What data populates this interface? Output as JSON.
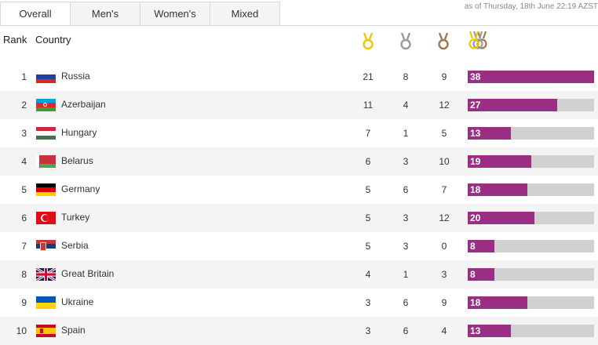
{
  "tabs": [
    {
      "label": "Overall",
      "active": true
    },
    {
      "label": "Men's",
      "active": false
    },
    {
      "label": "Women's",
      "active": false
    },
    {
      "label": "Mixed",
      "active": false
    }
  ],
  "as_of": "as of Thursday, 18th June 22:19 AZST",
  "headers": {
    "rank": "Rank",
    "country": "Country"
  },
  "icons": {
    "gold": "gold-medal-icon",
    "silver": "silver-medal-icon",
    "bronze": "bronze-medal-icon",
    "total": "total-medals-icon"
  },
  "colors": {
    "gold": "#f2c500",
    "silver": "#9a9a9a",
    "bronze": "#9b7a50",
    "bar": "#9a2d84",
    "bar_bg": "#d1d1d1"
  },
  "bar_max": 38,
  "rows": [
    {
      "rank": "1",
      "country": "Russia",
      "flag": "russia",
      "gold": "21",
      "silver": "8",
      "bronze": "9",
      "total": "38"
    },
    {
      "rank": "2",
      "country": "Azerbaijan",
      "flag": "azerbaijan",
      "gold": "11",
      "silver": "4",
      "bronze": "12",
      "total": "27"
    },
    {
      "rank": "3",
      "country": "Hungary",
      "flag": "hungary",
      "gold": "7",
      "silver": "1",
      "bronze": "5",
      "total": "13"
    },
    {
      "rank": "4",
      "country": "Belarus",
      "flag": "belarus",
      "gold": "6",
      "silver": "3",
      "bronze": "10",
      "total": "19"
    },
    {
      "rank": "5",
      "country": "Germany",
      "flag": "germany",
      "gold": "5",
      "silver": "6",
      "bronze": "7",
      "total": "18"
    },
    {
      "rank": "6",
      "country": "Turkey",
      "flag": "turkey",
      "gold": "5",
      "silver": "3",
      "bronze": "12",
      "total": "20"
    },
    {
      "rank": "7",
      "country": "Serbia",
      "flag": "serbia",
      "gold": "5",
      "silver": "3",
      "bronze": "0",
      "total": "8"
    },
    {
      "rank": "8",
      "country": "Great Britain",
      "flag": "great-britain",
      "gold": "4",
      "silver": "1",
      "bronze": "3",
      "total": "8"
    },
    {
      "rank": "9",
      "country": "Ukraine",
      "flag": "ukraine",
      "gold": "3",
      "silver": "6",
      "bronze": "9",
      "total": "18"
    },
    {
      "rank": "10",
      "country": "Spain",
      "flag": "spain",
      "gold": "3",
      "silver": "6",
      "bronze": "4",
      "total": "13"
    }
  ]
}
